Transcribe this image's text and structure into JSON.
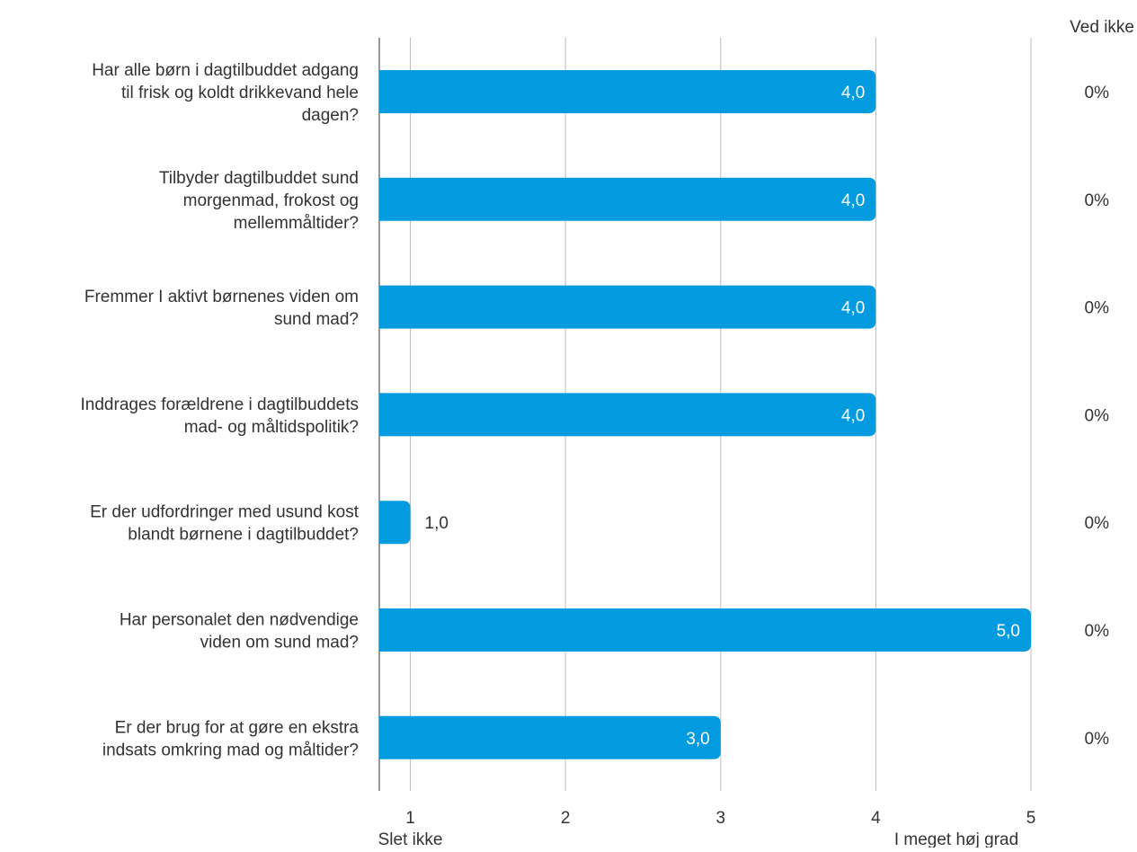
{
  "chart_data": {
    "type": "bar",
    "orientation": "horizontal",
    "categories": [
      "Har alle børn i dagtilbuddet adgang til frisk og koldt drikkevand hele dagen?",
      "Tilbyder dagtilbuddet sund morgenmad, frokost og mellemmåltider?",
      "Fremmer I aktivt børnenes viden om sund mad?",
      "Inddrages forældrene i dagtilbuddets mad- og måltidspolitik?",
      "Er der udfordringer med usund kost blandt børnene i dagtilbuddet?",
      "Har personalet den nødvendige viden om sund mad?",
      "Er der brug for at gøre en ekstra indsats omkring mad og måltider?"
    ],
    "category_lines": [
      [
        "Har alle børn i dagtilbuddet adgang",
        "til frisk og koldt drikkevand hele",
        "dagen?"
      ],
      [
        "Tilbyder dagtilbuddet sund",
        "morgenmad, frokost og",
        "mellemmåltider?"
      ],
      [
        "Fremmer I aktivt børnenes viden om",
        "sund mad?"
      ],
      [
        "Inddrages forældrene i dagtilbuddets",
        "mad- og måltidspolitik?"
      ],
      [
        "Er der udfordringer med usund kost",
        "blandt børnene i dagtilbuddet?"
      ],
      [
        "Har personalet den nødvendige",
        "viden om sund mad?"
      ],
      [
        "Er der brug for at gøre en ekstra",
        "indsats omkring mad og måltider?"
      ]
    ],
    "values": [
      4.0,
      4.0,
      4.0,
      4.0,
      1.0,
      5.0,
      3.0
    ],
    "value_labels": [
      "4,0",
      "4,0",
      "4,0",
      "4,0",
      "1,0",
      "5,0",
      "3,0"
    ],
    "dont_know_header": "Ved ikke",
    "dont_know": [
      "0%",
      "0%",
      "0%",
      "0%",
      "0%",
      "0%",
      "0%"
    ],
    "xlim": [
      0.8,
      5
    ],
    "xticks": [
      1,
      2,
      3,
      4,
      5
    ],
    "xtick_labels": [
      "1",
      "2",
      "3",
      "4",
      "5"
    ],
    "x_anchor_low": "Slet ikke",
    "x_anchor_high": "I meget høj grad",
    "grid": true,
    "bar_color": "#039BE0",
    "grid_color": "#bdbdbd",
    "axis_color": "#999999"
  }
}
